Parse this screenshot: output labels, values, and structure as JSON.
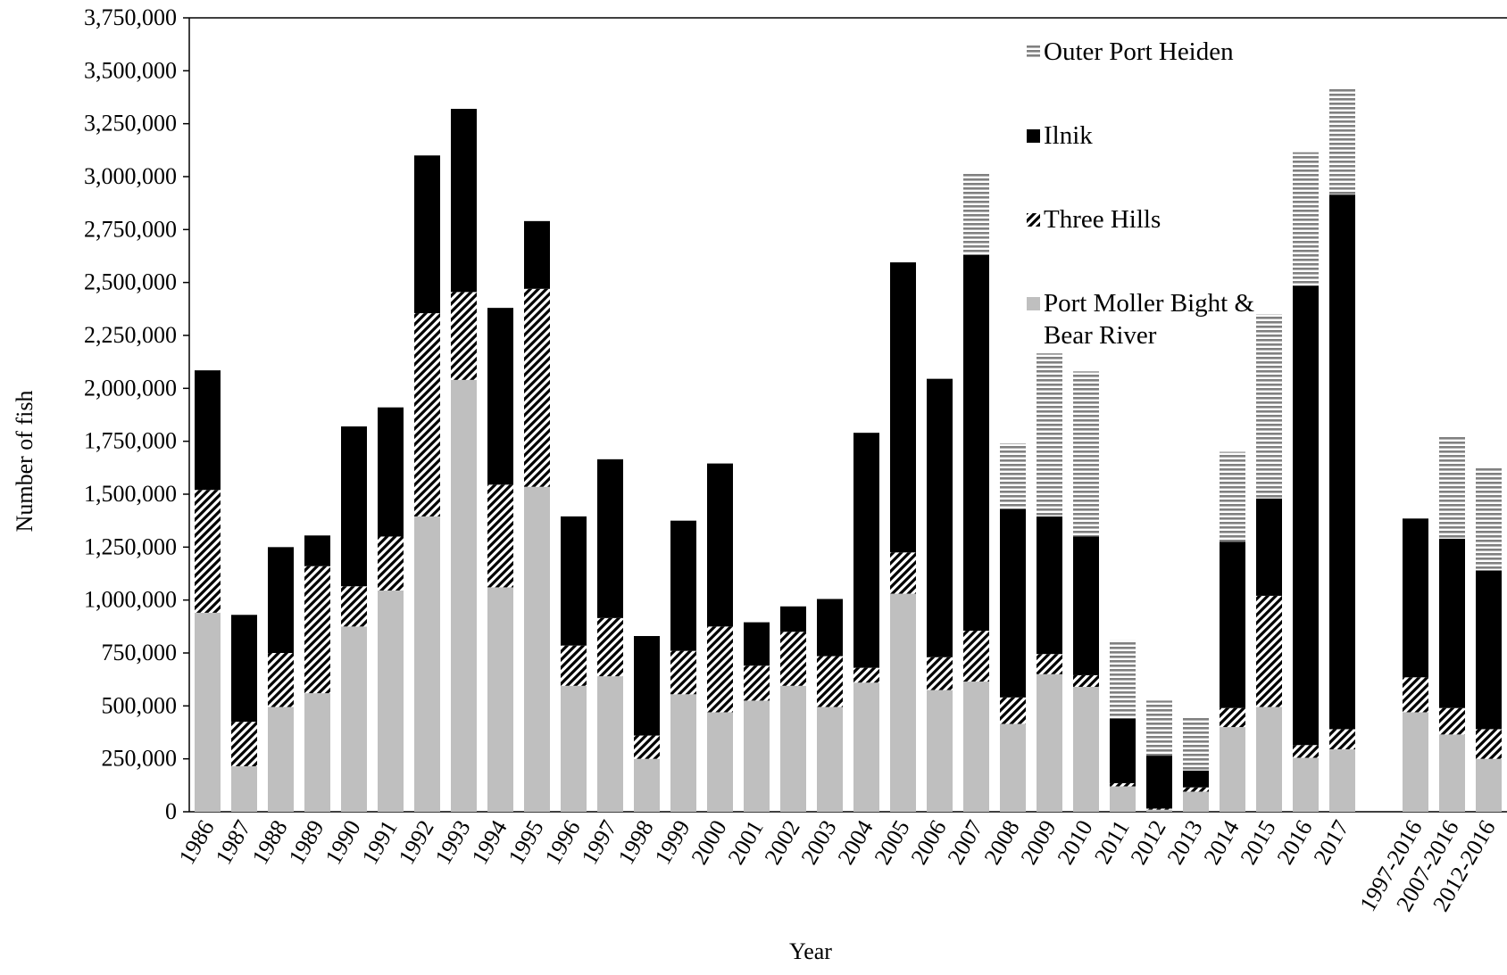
{
  "chart_data": {
    "type": "stacked_bar",
    "xlabel": "Year",
    "ylabel": "Number of fish",
    "categories": [
      "1986",
      "1987",
      "1988",
      "1989",
      "1990",
      "1991",
      "1992",
      "1993",
      "1994",
      "1995",
      "1996",
      "1997",
      "1998",
      "1999",
      "2000",
      "2001",
      "2002",
      "2003",
      "2004",
      "2005",
      "2006",
      "2007",
      "2008",
      "2009",
      "2010",
      "2011",
      "2012",
      "2013",
      "2014",
      "2015",
      "2016",
      "2017",
      null,
      "1997-2016",
      "2007-2016",
      "2012-2016"
    ],
    "series": [
      {
        "name": "Port Moller Bight & Bear River",
        "color": "#bfbfbf",
        "pattern": "solid",
        "values": [
          940000,
          215000,
          495000,
          560000,
          875000,
          1045000,
          1395000,
          2040000,
          1060000,
          1535000,
          595000,
          640000,
          250000,
          555000,
          470000,
          525000,
          595000,
          495000,
          610000,
          1030000,
          575000,
          615000,
          415000,
          650000,
          590000,
          120000,
          10000,
          95000,
          400000,
          495000,
          255000,
          295000,
          null,
          470000,
          365000,
          250000
        ]
      },
      {
        "name": "Three Hills",
        "color": "#000000",
        "pattern": "diagonal",
        "values": [
          580000,
          210000,
          255000,
          600000,
          190000,
          255000,
          960000,
          415000,
          485000,
          935000,
          190000,
          275000,
          110000,
          205000,
          405000,
          165000,
          255000,
          240000,
          70000,
          195000,
          155000,
          240000,
          125000,
          95000,
          55000,
          15000,
          5000,
          20000,
          90000,
          525000,
          60000,
          95000,
          null,
          165000,
          125000,
          140000
        ]
      },
      {
        "name": "Ilnik",
        "color": "#000000",
        "pattern": "solid",
        "values": [
          565000,
          505000,
          500000,
          145000,
          755000,
          610000,
          745000,
          865000,
          835000,
          320000,
          610000,
          750000,
          470000,
          615000,
          770000,
          205000,
          120000,
          270000,
          1110000,
          1370000,
          1315000,
          1775000,
          890000,
          650000,
          655000,
          305000,
          250000,
          80000,
          785000,
          460000,
          2170000,
          2525000,
          null,
          750000,
          800000,
          750000
        ]
      },
      {
        "name": "Outer Port Heiden",
        "color": "#808080",
        "pattern": "horizontal",
        "values": [
          null,
          null,
          null,
          null,
          null,
          null,
          null,
          null,
          null,
          null,
          null,
          null,
          null,
          null,
          null,
          null,
          null,
          null,
          null,
          null,
          null,
          390000,
          310000,
          770000,
          780000,
          370000,
          260000,
          255000,
          425000,
          870000,
          630000,
          505000,
          null,
          null,
          480000,
          490000
        ]
      }
    ],
    "ylim": [
      0,
      3750000
    ],
    "yticks": [
      0,
      {
        "value": 250000,
        "label": "250,000"
      },
      {
        "value": 500000,
        "label": "500,000"
      },
      {
        "value": 750000,
        "label": "750,000"
      },
      {
        "value": 1000000,
        "label": "1,000,000"
      },
      {
        "value": 1250000,
        "label": "1,250,000"
      },
      {
        "value": 1500000,
        "label": "1,500,000"
      },
      {
        "value": 1750000,
        "label": "1,750,000"
      },
      {
        "value": 2000000,
        "label": "2,000,000"
      },
      {
        "value": 2250000,
        "label": "2,250,000"
      },
      {
        "value": 2500000,
        "label": "2,500,000"
      },
      {
        "value": 2750000,
        "label": "2,750,000"
      },
      {
        "value": 3000000,
        "label": "3,000,000"
      },
      {
        "value": 3250000,
        "label": "3,250,000"
      },
      {
        "value": 3500000,
        "label": "3,500,000"
      },
      {
        "value": 3750000,
        "label": "3,750,000"
      }
    ],
    "grid": false,
    "legend": "upper right"
  }
}
